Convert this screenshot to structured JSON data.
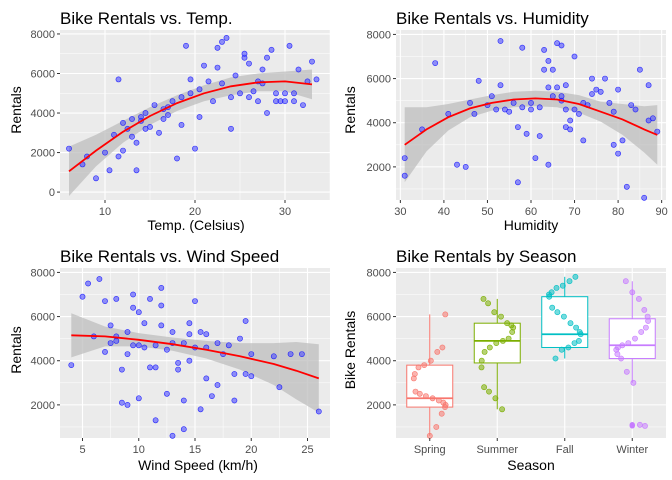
{
  "colors": {
    "panel_bg": "#ebebeb",
    "grid_major": "#ffffff",
    "point_fill": "#4d4dff",
    "point_stroke": "#0000ff",
    "fit_line": "#ff0000",
    "ribbon": "#bdbdbd"
  },
  "chart_data": [
    {
      "id": "temp",
      "type": "scatter",
      "title": "Bike Rentals vs. Temp.",
      "xlabel": "Temp. (Celsius)",
      "ylabel": "Rentals",
      "xlim": [
        5,
        35
      ],
      "ylim": [
        -400,
        8200
      ],
      "xticks": [
        10,
        20,
        30
      ],
      "yticks": [
        0,
        2000,
        4000,
        6000,
        8000
      ],
      "grid": true,
      "points": [
        [
          6.0,
          2200
        ],
        [
          7.5,
          1400
        ],
        [
          8.0,
          1800
        ],
        [
          9.0,
          700
        ],
        [
          10.0,
          2000
        ],
        [
          10.5,
          1100
        ],
        [
          11.0,
          2900
        ],
        [
          11.5,
          1800
        ],
        [
          12.0,
          3500
        ],
        [
          12.5,
          3200
        ],
        [
          13.0,
          3700
        ],
        [
          13.5,
          2500
        ],
        [
          13.0,
          2800
        ],
        [
          13.5,
          1100
        ],
        [
          14.0,
          3800
        ],
        [
          14.5,
          3200
        ],
        [
          14.5,
          4000
        ],
        [
          15.0,
          3300
        ],
        [
          15.5,
          4400
        ],
        [
          16.0,
          3000
        ],
        [
          16.5,
          4200
        ],
        [
          17.0,
          3900
        ],
        [
          17.0,
          4300
        ],
        [
          17.5,
          4600
        ],
        [
          18.0,
          1700
        ],
        [
          18.5,
          3400
        ],
        [
          18.5,
          4800
        ],
        [
          19.0,
          7400
        ],
        [
          19.5,
          5000
        ],
        [
          19.5,
          5700
        ],
        [
          20.0,
          2200
        ],
        [
          20.5,
          3800
        ],
        [
          20.5,
          5200
        ],
        [
          21.0,
          6400
        ],
        [
          21.5,
          5600
        ],
        [
          22.0,
          4600
        ],
        [
          22.5,
          7300
        ],
        [
          22.5,
          6300
        ],
        [
          23.0,
          5500
        ],
        [
          23.0,
          7600
        ],
        [
          23.5,
          7800
        ],
        [
          24.0,
          3200
        ],
        [
          24.0,
          4800
        ],
        [
          24.5,
          5900
        ],
        [
          25.0,
          5000
        ],
        [
          25.5,
          6800
        ],
        [
          25.5,
          7000
        ],
        [
          26.0,
          6500
        ],
        [
          26.0,
          4800
        ],
        [
          26.5,
          5100
        ],
        [
          27.0,
          4600
        ],
        [
          27.0,
          5600
        ],
        [
          27.5,
          6200
        ],
        [
          28.0,
          4000
        ],
        [
          28.0,
          6800
        ],
        [
          28.5,
          7200
        ],
        [
          29.0,
          4600
        ],
        [
          29.0,
          5000
        ],
        [
          29.5,
          4600
        ],
        [
          30.0,
          4600
        ],
        [
          30.5,
          7400
        ],
        [
          31.0,
          5000
        ],
        [
          31.0,
          4600
        ],
        [
          31.5,
          6200
        ],
        [
          32.0,
          4400
        ],
        [
          32.5,
          5600
        ],
        [
          33.0,
          6600
        ],
        [
          33.5,
          5700
        ],
        [
          30.0,
          5000
        ],
        [
          27.5,
          5500
        ],
        [
          11.5,
          5700
        ],
        [
          14.0,
          3600
        ],
        [
          16.5,
          3700
        ],
        [
          12.0,
          2100
        ]
      ],
      "fit": [
        [
          6,
          1050,
          -200,
          2300
        ],
        [
          9,
          2100,
          1300,
          2900
        ],
        [
          12,
          3050,
          2500,
          3600
        ],
        [
          15,
          3850,
          3400,
          4300
        ],
        [
          18,
          4500,
          4100,
          4900
        ],
        [
          21,
          5000,
          4600,
          5400
        ],
        [
          24,
          5350,
          4900,
          5800
        ],
        [
          27,
          5550,
          5100,
          6000
        ],
        [
          30,
          5600,
          5100,
          6100
        ],
        [
          33,
          5450,
          4700,
          6200
        ]
      ]
    },
    {
      "id": "humidity",
      "type": "scatter",
      "title": "Bike Rentals vs. Humidity",
      "xlabel": "Humidity",
      "ylabel": "Rentals",
      "xlim": [
        29,
        91
      ],
      "ylim": [
        500,
        8200
      ],
      "xticks": [
        30,
        40,
        50,
        60,
        70,
        80,
        90
      ],
      "yticks": [
        2000,
        4000,
        6000,
        8000
      ],
      "grid": true,
      "points": [
        [
          31,
          1600
        ],
        [
          31,
          2400
        ],
        [
          38,
          6700
        ],
        [
          41,
          4400
        ],
        [
          43,
          2100
        ],
        [
          45,
          2000
        ],
        [
          47,
          4400
        ],
        [
          48,
          5900
        ],
        [
          50,
          4800
        ],
        [
          51,
          5200
        ],
        [
          53,
          7700
        ],
        [
          53,
          5700
        ],
        [
          54,
          4600
        ],
        [
          55,
          4500
        ],
        [
          56,
          4900
        ],
        [
          57,
          3800
        ],
        [
          57,
          1300
        ],
        [
          58,
          4700
        ],
        [
          59,
          3500
        ],
        [
          60,
          4600
        ],
        [
          61,
          2400
        ],
        [
          62,
          4700
        ],
        [
          62,
          3400
        ],
        [
          63,
          7300
        ],
        [
          64,
          2100
        ],
        [
          64,
          5600
        ],
        [
          64,
          6800
        ],
        [
          65,
          6400
        ],
        [
          65,
          5200
        ],
        [
          66,
          7600
        ],
        [
          66,
          5600
        ],
        [
          67,
          7500
        ],
        [
          67,
          5000
        ],
        [
          68,
          5700
        ],
        [
          68,
          4600
        ],
        [
          68,
          3800
        ],
        [
          69,
          4100
        ],
        [
          69,
          3700
        ],
        [
          70,
          7000
        ],
        [
          70,
          4600
        ],
        [
          71,
          4400
        ],
        [
          72,
          3200
        ],
        [
          73,
          4800
        ],
        [
          74,
          5300
        ],
        [
          74,
          6000
        ],
        [
          75,
          5500
        ],
        [
          76,
          5400
        ],
        [
          77,
          6000
        ],
        [
          78,
          4900
        ],
        [
          79,
          3000
        ],
        [
          79,
          4500
        ],
        [
          80,
          2600
        ],
        [
          80,
          5500
        ],
        [
          81,
          3200
        ],
        [
          82,
          1100
        ],
        [
          83,
          4800
        ],
        [
          84,
          4600
        ],
        [
          85,
          6400
        ],
        [
          86,
          600
        ],
        [
          87,
          5700
        ],
        [
          87,
          4100
        ],
        [
          88,
          4200
        ],
        [
          89,
          3600
        ],
        [
          58,
          7400
        ],
        [
          60,
          4900
        ],
        [
          52,
          4600
        ],
        [
          72,
          4900
        ],
        [
          46,
          4900
        ],
        [
          67,
          5200
        ],
        [
          63,
          6400
        ],
        [
          35,
          3700
        ]
      ],
      "fit": [
        [
          31,
          3000,
          1300,
          4700
        ],
        [
          36,
          3700,
          2700,
          4700
        ],
        [
          41,
          4250,
          3650,
          4850
        ],
        [
          46,
          4650,
          4250,
          5050
        ],
        [
          51,
          4900,
          4550,
          5250
        ],
        [
          56,
          5050,
          4700,
          5400
        ],
        [
          61,
          5100,
          4750,
          5450
        ],
        [
          66,
          5050,
          4700,
          5400
        ],
        [
          71,
          4850,
          4450,
          5250
        ],
        [
          76,
          4500,
          4050,
          4950
        ],
        [
          81,
          4150,
          3450,
          4850
        ],
        [
          86,
          3700,
          2650,
          4750
        ],
        [
          89,
          3450,
          2100,
          4800
        ]
      ]
    },
    {
      "id": "wind",
      "type": "scatter",
      "title": "Bike Rentals vs. Wind Speed",
      "xlabel": "Wind Speed (km/h)",
      "ylabel": "Rentals",
      "xlim": [
        3,
        27
      ],
      "ylim": [
        500,
        8200
      ],
      "xticks": [
        5,
        10,
        15,
        20,
        25
      ],
      "yticks": [
        2000,
        4000,
        6000,
        8000
      ],
      "grid": true,
      "points": [
        [
          4.0,
          3800
        ],
        [
          5.0,
          6900
        ],
        [
          5.5,
          7500
        ],
        [
          6.0,
          5100
        ],
        [
          6.5,
          7700
        ],
        [
          7.0,
          4400
        ],
        [
          7.0,
          6700
        ],
        [
          7.5,
          5600
        ],
        [
          7.5,
          4800
        ],
        [
          8.0,
          5100
        ],
        [
          8.0,
          6800
        ],
        [
          8.5,
          3600
        ],
        [
          8.5,
          2100
        ],
        [
          9.0,
          5300
        ],
        [
          9.0,
          4300
        ],
        [
          9.0,
          2000
        ],
        [
          9.5,
          6400
        ],
        [
          9.5,
          4700
        ],
        [
          10.0,
          6200
        ],
        [
          10.0,
          4700
        ],
        [
          10.5,
          4600
        ],
        [
          10.5,
          5700
        ],
        [
          11.0,
          3700
        ],
        [
          11.0,
          6800
        ],
        [
          11.5,
          4700
        ],
        [
          11.5,
          3700
        ],
        [
          12.0,
          7300
        ],
        [
          12.0,
          5600
        ],
        [
          12.5,
          4500
        ],
        [
          12.5,
          2500
        ],
        [
          13.0,
          5300
        ],
        [
          13.0,
          4800
        ],
        [
          13.5,
          3900
        ],
        [
          13.5,
          3600
        ],
        [
          14.0,
          2200
        ],
        [
          14.0,
          4800
        ],
        [
          14.5,
          5200
        ],
        [
          14.5,
          4000
        ],
        [
          15.0,
          6700
        ],
        [
          15.0,
          4600
        ],
        [
          15.5,
          5300
        ],
        [
          15.5,
          1800
        ],
        [
          16.0,
          3200
        ],
        [
          16.0,
          4600
        ],
        [
          16.5,
          2400
        ],
        [
          17.0,
          4800
        ],
        [
          17.0,
          2900
        ],
        [
          17.5,
          4300
        ],
        [
          18.0,
          4700
        ],
        [
          18.5,
          2200
        ],
        [
          18.5,
          3400
        ],
        [
          19.0,
          5000
        ],
        [
          19.5,
          5800
        ],
        [
          19.5,
          3400
        ],
        [
          20.0,
          4300
        ],
        [
          20.0,
          3300
        ],
        [
          22.0,
          4200
        ],
        [
          22.5,
          2800
        ],
        [
          23.5,
          4300
        ],
        [
          24.5,
          4300
        ],
        [
          26.0,
          1700
        ],
        [
          13.0,
          600
        ],
        [
          10.0,
          2300
        ],
        [
          11.5,
          1300
        ],
        [
          8.0,
          4900
        ],
        [
          9.5,
          7000
        ],
        [
          14.5,
          5700
        ],
        [
          16.0,
          5200
        ],
        [
          12.0,
          6500
        ],
        [
          14.0,
          900
        ]
      ],
      "fit": [
        [
          4,
          5150,
          4150,
          6150
        ],
        [
          7,
          5100,
          4650,
          5550
        ],
        [
          10,
          4950,
          4650,
          5250
        ],
        [
          13,
          4750,
          4450,
          5050
        ],
        [
          16,
          4500,
          4100,
          4900
        ],
        [
          19,
          4200,
          3600,
          4800
        ],
        [
          22,
          3850,
          2900,
          4800
        ],
        [
          24,
          3550,
          2250,
          4850
        ],
        [
          26,
          3200,
          1650,
          4750
        ]
      ]
    },
    {
      "id": "season",
      "type": "box",
      "title": "Bike Rentals by Season",
      "xlabel": "Season",
      "ylabel": "Bike Rentals",
      "ylim": [
        500,
        8200
      ],
      "yticks": [
        2000,
        4000,
        6000,
        8000
      ],
      "grid": true,
      "categories": [
        "Spring",
        "Summer",
        "Fall",
        "Winter"
      ],
      "colors": [
        "#f8766d",
        "#7cae00",
        "#00bfc4",
        "#c77cff"
      ],
      "boxes": [
        {
          "min": 600,
          "q1": 1900,
          "median": 2300,
          "q3": 3800,
          "max": 6100
        },
        {
          "min": 1800,
          "q1": 3900,
          "median": 4900,
          "q3": 5700,
          "max": 6800
        },
        {
          "min": 4100,
          "q1": 4600,
          "median": 5200,
          "q3": 6900,
          "max": 7800
        },
        {
          "min": 3000,
          "q1": 4100,
          "median": 4700,
          "q3": 5900,
          "max": 7600
        }
      ],
      "outliers": [
        [],
        [],
        [],
        [
          1100,
          1050
        ]
      ],
      "jitter": [
        [
          600,
          1000,
          1600,
          1900,
          2000,
          2100,
          2200,
          2300,
          2400,
          2500,
          2600,
          3200,
          3400,
          3700,
          3800,
          4000,
          4400,
          4600,
          6100
        ],
        [
          1800,
          2300,
          2600,
          2800,
          3700,
          4000,
          4400,
          4600,
          4800,
          4900,
          5000,
          5300,
          5500,
          5600,
          5700,
          6000,
          6200,
          6600,
          6800
        ],
        [
          4100,
          4500,
          4600,
          4800,
          4900,
          5200,
          5300,
          5500,
          5700,
          6000,
          6200,
          6400,
          6900,
          7000,
          7100,
          7300,
          7400,
          7600,
          7800
        ],
        [
          1050,
          1100,
          3000,
          3500,
          4100,
          4300,
          4500,
          4600,
          4700,
          4800,
          5000,
          5300,
          5500,
          5800,
          6000,
          6300,
          6800,
          7100,
          7600
        ]
      ]
    }
  ]
}
